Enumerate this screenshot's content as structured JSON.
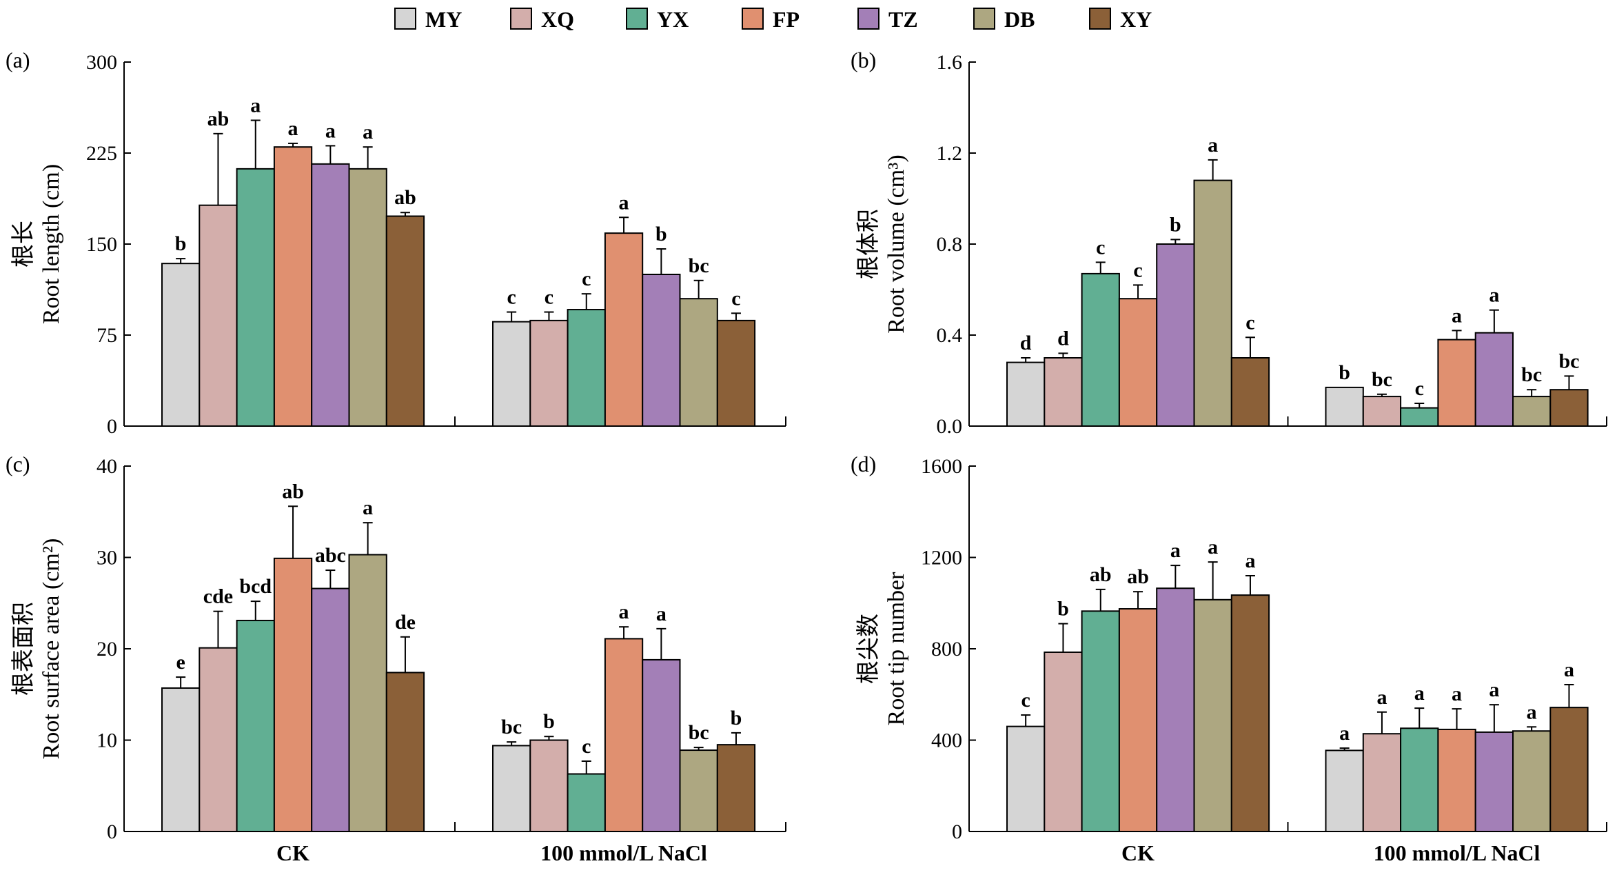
{
  "legend": [
    "MY",
    "XQ",
    "YX",
    "FP",
    "TZ",
    "DB",
    "XY"
  ],
  "colors": [
    "#d5d5d5",
    "#d3aeab",
    "#61af93",
    "#e09070",
    "#a37fb7",
    "#ada781",
    "#8b6038"
  ],
  "chart_data": [
    {
      "type": "bar",
      "panel_label": "(a)",
      "ylabel_cn": "根长",
      "ylabel": "Root length (cm)",
      "ylim": [
        0,
        300
      ],
      "yticks": [
        "0",
        "75",
        "150",
        "225",
        "300"
      ],
      "categories": [
        "CK",
        "100 mmol/L NaCl"
      ],
      "series": [
        {
          "name": "MY",
          "values": [
            134,
            86
          ],
          "errors": [
            4,
            8
          ],
          "letters": [
            "b",
            "c"
          ]
        },
        {
          "name": "XQ",
          "values": [
            182,
            87
          ],
          "errors": [
            59,
            7
          ],
          "letters": [
            "ab",
            "c"
          ]
        },
        {
          "name": "YX",
          "values": [
            212,
            96
          ],
          "errors": [
            40,
            13
          ],
          "letters": [
            "a",
            "c"
          ]
        },
        {
          "name": "FP",
          "values": [
            230,
            159
          ],
          "errors": [
            3,
            13
          ],
          "letters": [
            "a",
            "a"
          ]
        },
        {
          "name": "TZ",
          "values": [
            216,
            125
          ],
          "errors": [
            15,
            21
          ],
          "letters": [
            "a",
            "b"
          ]
        },
        {
          "name": "DB",
          "values": [
            212,
            105
          ],
          "errors": [
            18,
            15
          ],
          "letters": [
            "a",
            "bc"
          ]
        },
        {
          "name": "XY",
          "values": [
            173,
            87
          ],
          "errors": [
            3,
            6
          ],
          "letters": [
            "ab",
            "c"
          ]
        }
      ]
    },
    {
      "type": "bar",
      "panel_label": "(b)",
      "ylabel_cn": "根体积",
      "ylabel": "Root volume (cm³)",
      "ylim": [
        0,
        1.6
      ],
      "yticks": [
        "0.0",
        "0.4",
        "0.8",
        "1.2",
        "1.6"
      ],
      "categories": [
        "CK",
        "100 mmol/L NaCl"
      ],
      "series": [
        {
          "name": "MY",
          "values": [
            0.28,
            0.17
          ],
          "errors": [
            0.02,
            0.0
          ],
          "letters": [
            "d",
            "b"
          ]
        },
        {
          "name": "XQ",
          "values": [
            0.3,
            0.13
          ],
          "errors": [
            0.02,
            0.01
          ],
          "letters": [
            "d",
            "bc"
          ]
        },
        {
          "name": "YX",
          "values": [
            0.67,
            0.08
          ],
          "errors": [
            0.05,
            0.02
          ],
          "letters": [
            "c",
            "c"
          ]
        },
        {
          "name": "FP",
          "values": [
            0.56,
            0.38
          ],
          "errors": [
            0.06,
            0.04
          ],
          "letters": [
            "c",
            "a"
          ]
        },
        {
          "name": "TZ",
          "values": [
            0.8,
            0.41
          ],
          "errors": [
            0.02,
            0.1
          ],
          "letters": [
            "b",
            "a"
          ]
        },
        {
          "name": "DB",
          "values": [
            1.08,
            0.13
          ],
          "errors": [
            0.09,
            0.03
          ],
          "letters": [
            "a",
            "bc"
          ]
        },
        {
          "name": "XY",
          "values": [
            0.3,
            0.16
          ],
          "errors": [
            0.09,
            0.06
          ],
          "letters": [
            "c",
            "bc"
          ]
        }
      ]
    },
    {
      "type": "bar",
      "panel_label": "(c)",
      "ylabel_cn": "根表面积",
      "ylabel": "Root surface area (cm²)",
      "ylim": [
        0,
        40
      ],
      "yticks": [
        "0",
        "10",
        "20",
        "30",
        "40"
      ],
      "categories": [
        "CK",
        "100 mmol/L NaCl"
      ],
      "series": [
        {
          "name": "MY",
          "values": [
            15.7,
            9.4
          ],
          "errors": [
            1.2,
            0.4
          ],
          "letters": [
            "e",
            "bc"
          ]
        },
        {
          "name": "XQ",
          "values": [
            20.1,
            10.0
          ],
          "errors": [
            4.0,
            0.4
          ],
          "letters": [
            "cde",
            "b"
          ]
        },
        {
          "name": "YX",
          "values": [
            23.1,
            6.3
          ],
          "errors": [
            2.1,
            1.4
          ],
          "letters": [
            "bcd",
            "c"
          ]
        },
        {
          "name": "FP",
          "values": [
            29.9,
            21.1
          ],
          "errors": [
            5.7,
            1.3
          ],
          "letters": [
            "ab",
            "a"
          ]
        },
        {
          "name": "TZ",
          "values": [
            26.6,
            18.8
          ],
          "errors": [
            2.0,
            3.4
          ],
          "letters": [
            "abc",
            "a"
          ]
        },
        {
          "name": "DB",
          "values": [
            30.3,
            8.9
          ],
          "errors": [
            3.5,
            0.3
          ],
          "letters": [
            "a",
            "bc"
          ]
        },
        {
          "name": "XY",
          "values": [
            17.4,
            9.5
          ],
          "errors": [
            3.9,
            1.3
          ],
          "letters": [
            "de",
            "b"
          ]
        }
      ]
    },
    {
      "type": "bar",
      "panel_label": "(d)",
      "ylabel_cn": "根尖数",
      "ylabel": "Root tip number",
      "ylim": [
        0,
        1600
      ],
      "yticks": [
        "0",
        "400",
        "800",
        "1200",
        "1600"
      ],
      "categories": [
        "CK",
        "100 mmol/L NaCl"
      ],
      "series": [
        {
          "name": "MY",
          "values": [
            460,
            355
          ],
          "errors": [
            50,
            10
          ],
          "letters": [
            "c",
            "a"
          ]
        },
        {
          "name": "XQ",
          "values": [
            785,
            428
          ],
          "errors": [
            125,
            95
          ],
          "letters": [
            "b",
            "a"
          ]
        },
        {
          "name": "YX",
          "values": [
            965,
            452
          ],
          "errors": [
            95,
            88
          ],
          "letters": [
            "ab",
            "a"
          ]
        },
        {
          "name": "FP",
          "values": [
            975,
            447
          ],
          "errors": [
            75,
            90
          ],
          "letters": [
            "ab",
            "a"
          ]
        },
        {
          "name": "TZ",
          "values": [
            1065,
            435
          ],
          "errors": [
            100,
            120
          ],
          "letters": [
            "a",
            "a"
          ]
        },
        {
          "name": "DB",
          "values": [
            1015,
            440
          ],
          "errors": [
            165,
            18
          ],
          "letters": [
            "a",
            "a"
          ]
        },
        {
          "name": "XY",
          "values": [
            1035,
            543
          ],
          "errors": [
            85,
            100
          ],
          "letters": [
            "a",
            "a"
          ]
        }
      ]
    }
  ]
}
